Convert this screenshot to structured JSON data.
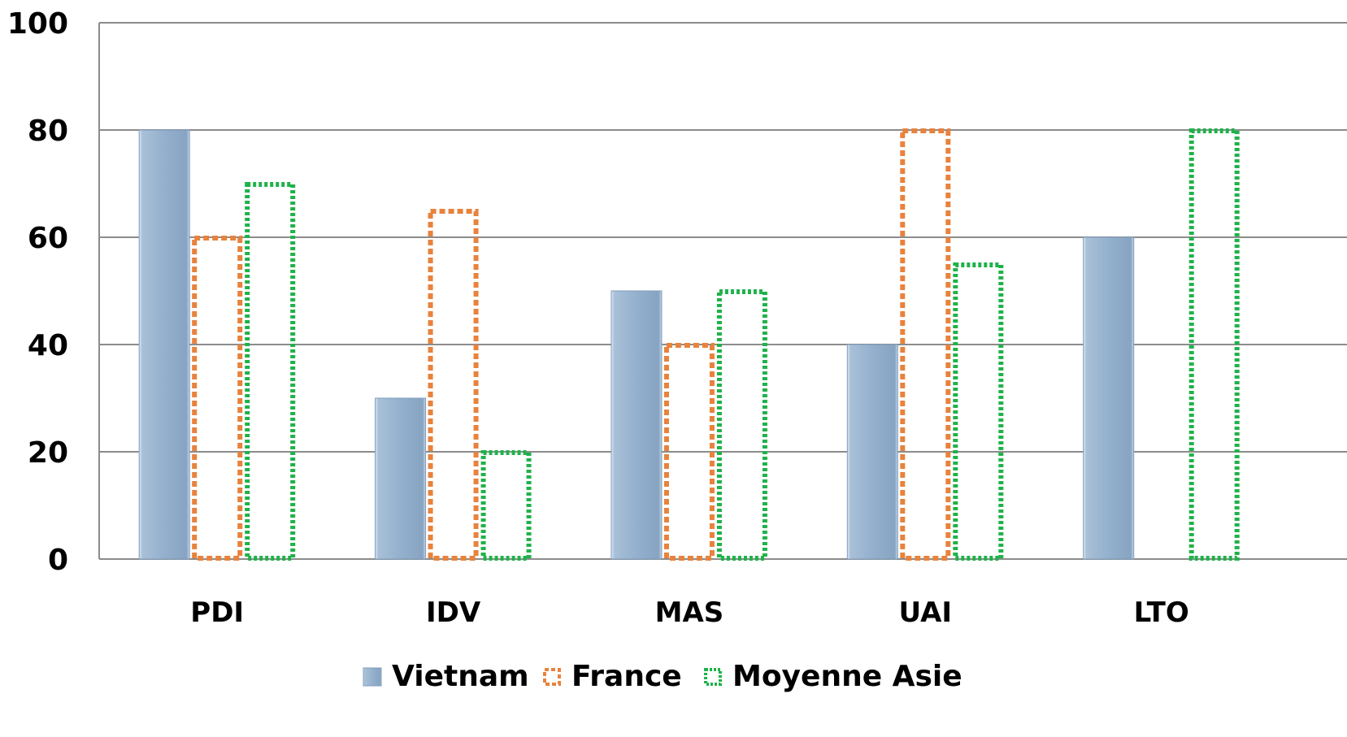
{
  "chart_data": {
    "type": "bar",
    "categories": [
      "PDI",
      "IDV",
      "MAS",
      "UAI",
      "LTO"
    ],
    "series": [
      {
        "name": "Vietnam",
        "values": [
          80,
          30,
          50,
          40,
          60
        ],
        "color": "#93b0cd",
        "style": "solid"
      },
      {
        "name": "France",
        "values": [
          60,
          65,
          40,
          80,
          null
        ],
        "color": "#e8823c",
        "style": "dashed"
      },
      {
        "name": "Moyenne Asie",
        "values": [
          70,
          20,
          50,
          55,
          80
        ],
        "color": "#1fb24a",
        "style": "dotted"
      }
    ],
    "ylim": [
      0,
      100
    ],
    "yticks": [
      "0",
      "20",
      "40",
      "60",
      "80",
      "100"
    ],
    "grid": true,
    "legend_position": "bottom"
  }
}
